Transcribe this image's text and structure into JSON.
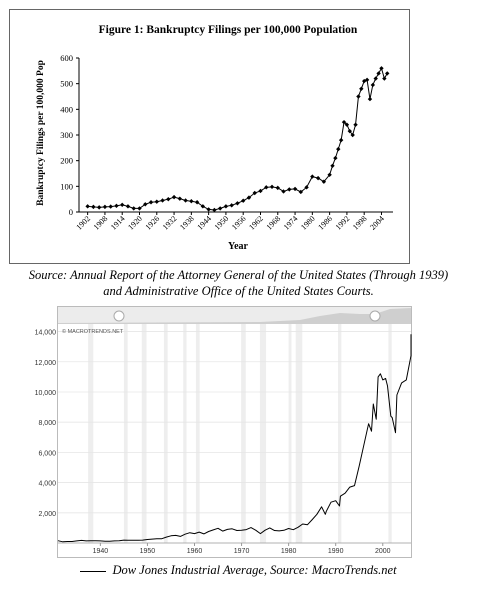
{
  "chart_data": [
    {
      "type": "line",
      "title": "Figure 1: Bankruptcy Filings per 100,000 Population",
      "xlabel": "Year",
      "ylabel": "Bankruptcy Filings per 100,000 Pop",
      "xlim": [
        1899,
        2008
      ],
      "ylim": [
        0,
        600
      ],
      "yticks": [
        0,
        100,
        200,
        300,
        400,
        500,
        600
      ],
      "xtick_labels": [
        "1902",
        "1908",
        "1914",
        "1920",
        "1926",
        "1932",
        "1938",
        "1944",
        "1950",
        "1956",
        "1962",
        "1968",
        "1974",
        "1980",
        "1986",
        "1992",
        "1998",
        "2004"
      ],
      "marker": "diamond",
      "grid": false,
      "x": [
        1902,
        1904,
        1906,
        1908,
        1910,
        1912,
        1914,
        1916,
        1918,
        1920,
        1922,
        1924,
        1926,
        1928,
        1930,
        1932,
        1934,
        1936,
        1938,
        1940,
        1942,
        1944,
        1946,
        1948,
        1950,
        1952,
        1954,
        1956,
        1958,
        1960,
        1962,
        1964,
        1966,
        1968,
        1970,
        1972,
        1974,
        1976,
        1978,
        1980,
        1982,
        1984,
        1986,
        1987,
        1988,
        1989,
        1990,
        1991,
        1992,
        1993,
        1994,
        1995,
        1996,
        1997,
        1998,
        1999,
        2000,
        2001,
        2002,
        2003,
        2004,
        2005,
        2006
      ],
      "y": [
        22,
        20,
        18,
        20,
        21,
        24,
        28,
        22,
        14,
        14,
        30,
        38,
        40,
        45,
        50,
        58,
        52,
        45,
        42,
        38,
        22,
        10,
        8,
        14,
        22,
        26,
        34,
        44,
        56,
        74,
        82,
        96,
        98,
        94,
        80,
        88,
        90,
        78,
        96,
        138,
        132,
        118,
        145,
        180,
        210,
        245,
        280,
        350,
        340,
        315,
        300,
        340,
        450,
        480,
        510,
        515,
        440,
        495,
        520,
        540,
        560,
        520,
        540
      ]
    },
    {
      "type": "line",
      "source_label": "© MACROTRENDS.NET",
      "xlim": [
        1931,
        2006
      ],
      "ylim": [
        0,
        14500
      ],
      "xtick_labels": [
        "1940",
        "1950",
        "1960",
        "1970",
        "1980",
        "1990",
        "2000"
      ],
      "ytick_labels": [
        "2,000",
        "4,000",
        "6,000",
        "8,000",
        "10,000",
        "12,000",
        "14,000"
      ],
      "yticks": [
        2000,
        4000,
        6000,
        8000,
        10000,
        12000,
        14000
      ],
      "x": [
        1931,
        1932,
        1933,
        1934,
        1935,
        1936,
        1937,
        1938,
        1939,
        1940,
        1941,
        1942,
        1943,
        1944,
        1945,
        1946,
        1947,
        1948,
        1949,
        1950,
        1951,
        1952,
        1953,
        1954,
        1955,
        1956,
        1957,
        1958,
        1959,
        1960,
        1961,
        1962,
        1963,
        1964,
        1965,
        1966,
        1967,
        1968,
        1969,
        1970,
        1971,
        1972,
        1973,
        1974,
        1975,
        1976,
        1977,
        1978,
        1979,
        1980,
        1981,
        1982,
        1983,
        1984,
        1985,
        1986,
        1987,
        1987.8,
        1988,
        1989,
        1990,
        1990.8,
        1991,
        1992,
        1993,
        1994,
        1995,
        1996,
        1997,
        1997.6,
        1998,
        1998.6,
        1999,
        1999.5,
        2000,
        2000.6,
        2001,
        2001.7,
        2002,
        2002.7,
        2003,
        2004,
        2005,
        2006,
        2006.5,
        2007
      ],
      "y": [
        150,
        80,
        100,
        100,
        140,
        170,
        140,
        150,
        150,
        140,
        120,
        110,
        140,
        150,
        190,
        180,
        180,
        180,
        190,
        230,
        260,
        280,
        280,
        390,
        480,
        500,
        440,
        580,
        680,
        620,
        720,
        600,
        760,
        870,
        970,
        790,
        900,
        940,
        830,
        840,
        890,
        1020,
        850,
        620,
        850,
        1000,
        830,
        800,
        840,
        960,
        880,
        1040,
        1260,
        1210,
        1550,
        1900,
        2400,
        1900,
        2100,
        2700,
        2800,
        2450,
        3100,
        3300,
        3700,
        3800,
        5100,
        6500,
        7900,
        7400,
        9200,
        8200,
        11000,
        11200,
        10800,
        10900,
        10400,
        8400,
        8300,
        7300,
        9800,
        10600,
        10800,
        12400,
        13800,
        12900
      ]
    }
  ],
  "figure1": {
    "title": "Figure 1: Bankruptcy Filings per 100,000 Population",
    "xlabel": "Year",
    "ylabel": "Bankruptcy Filings per 100,000 Pop"
  },
  "source1": {
    "line1": "Source:  Annual Report of the Attorney General of the United States (Through 1939)",
    "line2": "and Administrative Office of the United States Courts."
  },
  "chart2": {
    "watermark": "© MACROTRENDS.NET"
  },
  "legend2": {
    "text": "Dow Jones Industrial Average, Source:  MacroTrends.net"
  }
}
